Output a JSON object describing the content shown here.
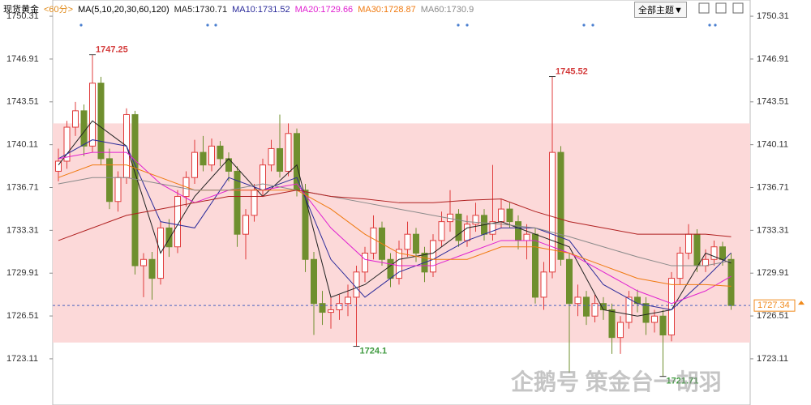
{
  "chart_data": {
    "type": "candlestick",
    "header": {
      "symbol": "现货黄金",
      "period": "<60分>",
      "ma_params": "MA(5,10,20,30,60,120)",
      "theme_button": "全部主题▼"
    },
    "watermark": "企鹅号 策金台一胡羽",
    "ylim": [
      1719.44,
      1751.6
    ],
    "yticks": [
      1723.11,
      1726.51,
      1729.91,
      1733.31,
      1736.71,
      1740.11,
      1743.51,
      1746.91,
      1750.31
    ],
    "up_color": "#e03c3c",
    "down_color": "#6f8f2e",
    "band": {
      "from": 1724.4,
      "to": 1741.8,
      "color": "#fcd9d9"
    },
    "last_price": 1727.34,
    "last_price_color": "#f08a1c",
    "candles": [
      [
        1738.0,
        1739.8,
        1737.2,
        1738.8
      ],
      [
        1738.8,
        1742.0,
        1738.2,
        1741.5
      ],
      [
        1741.5,
        1743.5,
        1740.8,
        1742.8
      ],
      [
        1742.8,
        1743.3,
        1739.2,
        1740.0
      ],
      [
        1740.0,
        1747.25,
        1739.5,
        1745.0
      ],
      [
        1745.0,
        1745.5,
        1738.5,
        1739.0
      ],
      [
        1739.0,
        1739.8,
        1735.0,
        1735.6
      ],
      [
        1735.6,
        1738.0,
        1734.8,
        1737.5
      ],
      [
        1737.5,
        1743.0,
        1737.0,
        1742.5
      ],
      [
        1742.5,
        1742.8,
        1729.8,
        1730.5
      ],
      [
        1730.5,
        1731.5,
        1728.0,
        1731.0
      ],
      [
        1731.0,
        1731.6,
        1727.8,
        1729.5
      ],
      [
        1729.5,
        1734.0,
        1729.0,
        1733.5
      ],
      [
        1733.5,
        1734.2,
        1731.2,
        1732.0
      ],
      [
        1732.0,
        1736.5,
        1731.5,
        1736.0
      ],
      [
        1736.0,
        1738.0,
        1735.2,
        1737.5
      ],
      [
        1737.5,
        1740.5,
        1737.0,
        1739.5
      ],
      [
        1739.5,
        1740.8,
        1738.0,
        1738.5
      ],
      [
        1738.5,
        1740.6,
        1738.0,
        1740.0
      ],
      [
        1740.0,
        1740.4,
        1738.4,
        1739.0
      ],
      [
        1739.0,
        1739.5,
        1737.2,
        1738.0
      ],
      [
        1738.0,
        1738.4,
        1732.0,
        1733.0
      ],
      [
        1733.0,
        1735.0,
        1731.0,
        1734.5
      ],
      [
        1734.5,
        1737.0,
        1734.0,
        1736.5
      ],
      [
        1736.5,
        1739.0,
        1736.0,
        1738.5
      ],
      [
        1738.5,
        1740.5,
        1738.0,
        1739.8
      ],
      [
        1739.8,
        1742.5,
        1737.5,
        1738.0
      ],
      [
        1738.0,
        1741.8,
        1737.6,
        1741.0
      ],
      [
        1741.0,
        1741.4,
        1736.0,
        1736.5
      ],
      [
        1736.5,
        1737.0,
        1730.0,
        1731.0
      ],
      [
        1731.0,
        1731.6,
        1725.0,
        1727.5
      ],
      [
        1727.5,
        1728.5,
        1725.8,
        1726.8
      ],
      [
        1726.8,
        1728.0,
        1725.5,
        1727.0
      ],
      [
        1727.0,
        1728.2,
        1726.2,
        1727.5
      ],
      [
        1727.5,
        1729.0,
        1726.5,
        1728.0
      ],
      [
        1728.0,
        1730.5,
        1724.1,
        1730.0
      ],
      [
        1730.0,
        1732.0,
        1729.2,
        1731.5
      ],
      [
        1731.5,
        1734.5,
        1731.0,
        1733.5
      ],
      [
        1733.5,
        1734.0,
        1730.5,
        1731.0
      ],
      [
        1731.0,
        1731.5,
        1728.8,
        1729.5
      ],
      [
        1729.5,
        1732.5,
        1729.0,
        1731.8
      ],
      [
        1731.8,
        1734.0,
        1731.2,
        1733.0
      ],
      [
        1733.0,
        1733.5,
        1730.8,
        1731.5
      ],
      [
        1731.5,
        1732.0,
        1729.2,
        1730.0
      ],
      [
        1730.0,
        1733.0,
        1729.6,
        1732.5
      ],
      [
        1732.5,
        1734.8,
        1732.0,
        1734.0
      ],
      [
        1734.0,
        1736.5,
        1733.2,
        1734.6
      ],
      [
        1734.6,
        1735.0,
        1732.0,
        1732.5
      ],
      [
        1732.5,
        1734.5,
        1732.0,
        1733.8
      ],
      [
        1733.8,
        1735.5,
        1733.2,
        1734.5
      ],
      [
        1734.5,
        1735.0,
        1732.5,
        1733.0
      ],
      [
        1733.0,
        1738.5,
        1732.5,
        1734.0
      ],
      [
        1734.0,
        1735.8,
        1733.5,
        1735.0
      ],
      [
        1735.0,
        1735.5,
        1733.5,
        1734.0
      ],
      [
        1734.0,
        1734.5,
        1731.8,
        1732.5
      ],
      [
        1732.5,
        1733.8,
        1731.0,
        1733.0
      ],
      [
        1733.0,
        1733.5,
        1727.5,
        1728.0
      ],
      [
        1728.0,
        1730.8,
        1727.0,
        1730.0
      ],
      [
        1730.0,
        1745.52,
        1729.5,
        1739.5
      ],
      [
        1739.5,
        1740.0,
        1730.5,
        1731.0
      ],
      [
        1731.0,
        1731.5,
        1722.0,
        1727.5
      ],
      [
        1727.5,
        1729.0,
        1726.5,
        1728.0
      ],
      [
        1728.0,
        1728.5,
        1725.8,
        1726.5
      ],
      [
        1726.5,
        1728.2,
        1726.0,
        1727.5
      ],
      [
        1727.5,
        1728.0,
        1726.2,
        1727.0
      ],
      [
        1727.0,
        1727.5,
        1723.5,
        1724.8
      ],
      [
        1724.8,
        1726.5,
        1723.5,
        1726.0
      ],
      [
        1726.0,
        1728.5,
        1725.5,
        1728.0
      ],
      [
        1728.0,
        1728.6,
        1726.8,
        1727.5
      ],
      [
        1727.5,
        1728.0,
        1725.0,
        1726.0
      ],
      [
        1726.0,
        1727.0,
        1725.2,
        1726.5
      ],
      [
        1726.5,
        1727.0,
        1721.71,
        1725.0
      ],
      [
        1725.0,
        1730.0,
        1724.5,
        1729.5
      ],
      [
        1729.5,
        1732.0,
        1729.0,
        1731.5
      ],
      [
        1731.5,
        1733.8,
        1731.0,
        1733.0
      ],
      [
        1733.0,
        1733.4,
        1730.0,
        1730.5
      ],
      [
        1730.5,
        1731.8,
        1730.0,
        1731.0
      ],
      [
        1731.0,
        1732.5,
        1730.5,
        1732.0
      ],
      [
        1732.0,
        1732.4,
        1730.5,
        1731.0
      ],
      [
        1731.0,
        1731.5,
        1727.0,
        1727.34
      ]
    ],
    "annotations": [
      {
        "index": 4,
        "value": 1747.25,
        "kind": "high",
        "color": "#d43c3c"
      },
      {
        "index": 58,
        "value": 1745.52,
        "kind": "high",
        "color": "#d43c3c"
      },
      {
        "index": 35,
        "value": 1724.1,
        "kind": "low",
        "color": "#3f9a3f"
      },
      {
        "index": 71,
        "value": 1721.71,
        "kind": "low",
        "color": "#3f9a3f"
      }
    ],
    "ma_lines": [
      {
        "label": "MA5:1730.71",
        "color": "#222222",
        "x": [
          0,
          4,
          8,
          12,
          16,
          20,
          24,
          28,
          32,
          36,
          40,
          44,
          48,
          52,
          56,
          60,
          64,
          68,
          72,
          76,
          79
        ],
        "values": [
          1738.5,
          1742,
          1740,
          1731.5,
          1736,
          1739,
          1736,
          1738.5,
          1728,
          1729,
          1731,
          1731.5,
          1733.5,
          1734,
          1733,
          1732,
          1727,
          1726.5,
          1727,
          1731.5,
          1730.71
        ]
      },
      {
        "label": "MA10:1731.52",
        "color": "#2a2a9a",
        "x": [
          0,
          4,
          8,
          12,
          16,
          20,
          24,
          28,
          32,
          36,
          40,
          44,
          48,
          52,
          56,
          60,
          64,
          68,
          72,
          76,
          79
        ],
        "values": [
          1739,
          1740.5,
          1740,
          1734,
          1733.5,
          1737.5,
          1736.5,
          1737.5,
          1731,
          1728,
          1730,
          1731,
          1732.5,
          1733.5,
          1733.5,
          1732.5,
          1729,
          1727.5,
          1727,
          1729.5,
          1731.52
        ]
      },
      {
        "label": "MA20:1729.66",
        "color": "#e020d0",
        "x": [
          0,
          4,
          8,
          12,
          16,
          20,
          24,
          28,
          32,
          36,
          40,
          44,
          48,
          52,
          56,
          60,
          64,
          68,
          72,
          76,
          79
        ],
        "values": [
          1739,
          1739.5,
          1739.5,
          1737,
          1735.5,
          1736.5,
          1736.5,
          1737,
          1733.5,
          1731,
          1730.5,
          1730.5,
          1731.5,
          1732.5,
          1732.5,
          1731.5,
          1730,
          1728.5,
          1727.5,
          1728.5,
          1729.66
        ]
      },
      {
        "label": "MA30:1728.87",
        "color": "#f07a10",
        "x": [
          0,
          4,
          8,
          12,
          16,
          20,
          24,
          28,
          32,
          36,
          40,
          44,
          48,
          52,
          56,
          60,
          64,
          68,
          72,
          76,
          79
        ],
        "values": [
          1737.5,
          1738.5,
          1738.5,
          1737.5,
          1736.5,
          1736.5,
          1736.5,
          1736.5,
          1735,
          1733,
          1731.5,
          1731,
          1731,
          1732,
          1732,
          1731.5,
          1730.5,
          1729.5,
          1729,
          1729,
          1728.87
        ]
      },
      {
        "label": "MA60:1730.9",
        "color": "#8a8a8a",
        "x": [
          0,
          4,
          8,
          12,
          16,
          20,
          24,
          28,
          32,
          36,
          40,
          44,
          48,
          52,
          56,
          60,
          64,
          68,
          72,
          76,
          79
        ],
        "values": [
          1737,
          1737.5,
          1737.5,
          1737,
          1736.5,
          1736.5,
          1737,
          1736.5,
          1736,
          1735.5,
          1735,
          1734.5,
          1734,
          1733.8,
          1733.5,
          1732.8,
          1732,
          1731.2,
          1730.5,
          1730.5,
          1730.9
        ]
      },
      {
        "color": "#b02020",
        "x": [
          0,
          4,
          8,
          12,
          16,
          20,
          24,
          28,
          32,
          36,
          40,
          44,
          48,
          52,
          56,
          60,
          64,
          68,
          72,
          76,
          79
        ],
        "values": [
          1732.5,
          1733.5,
          1734.5,
          1735,
          1735.5,
          1736,
          1736,
          1736.5,
          1736,
          1735.8,
          1735.5,
          1735.5,
          1735.7,
          1735.8,
          1734.8,
          1734,
          1733.5,
          1733,
          1733,
          1733,
          1732.8
        ]
      }
    ]
  }
}
